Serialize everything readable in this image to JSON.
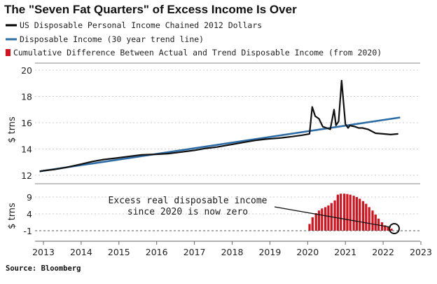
{
  "chart_data": {
    "title": "The \"Seven Fat Quarters\" of Excess Income Is Over",
    "source": "Source: Bloomberg",
    "legend": [
      {
        "label": "US Disposable Personal Income Chained 2012 Dollars",
        "color": "#000000"
      },
      {
        "label": "Disposable Income (30 year trend line)",
        "color": "#2e6ca6"
      },
      {
        "label": "Cumulative Difference Between Actual and Trend Disposable Income (from 2020)",
        "color": "#d8111c"
      }
    ],
    "x_ticks": [
      "2013",
      "2014",
      "2015",
      "2016",
      "2017",
      "2018",
      "2019",
      "2020",
      "2021",
      "2022",
      "2023"
    ],
    "panels": [
      {
        "type": "line",
        "ylabel": "$ trns",
        "ylim": [
          11.8,
          20.3
        ],
        "y_ticks": [
          12,
          14,
          16,
          18,
          20
        ],
        "grid": true,
        "series": [
          {
            "name": "US Disposable Personal Income Chained 2012 Dollars",
            "x": [
              2012.9,
              2013.0,
              2013.3,
              2013.6,
              2014.0,
              2014.3,
              2014.6,
              2014.9,
              2015.3,
              2015.6,
              2016.0,
              2016.3,
              2016.6,
              2017.0,
              2017.3,
              2017.6,
              2018.0,
              2018.3,
              2018.6,
              2018.9,
              2019.3,
              2019.6,
              2019.85,
              2019.95,
              2020.05,
              2020.12,
              2020.2,
              2020.3,
              2020.4,
              2020.5,
              2020.6,
              2020.7,
              2020.75,
              2020.82,
              2020.9,
              2021.0,
              2021.07,
              2021.12,
              2021.17,
              2021.25,
              2021.35,
              2021.45,
              2021.6,
              2021.8,
              2022.0,
              2022.2,
              2022.4
            ],
            "values": [
              12.3,
              12.35,
              12.45,
              12.6,
              12.85,
              13.05,
              13.2,
              13.3,
              13.45,
              13.55,
              13.6,
              13.65,
              13.75,
              13.9,
              14.05,
              14.15,
              14.35,
              14.5,
              14.65,
              14.75,
              14.85,
              14.95,
              15.05,
              15.1,
              15.15,
              17.2,
              16.5,
              16.3,
              15.7,
              15.6,
              15.5,
              17.0,
              15.8,
              16.1,
              19.2,
              15.9,
              15.6,
              15.8,
              15.75,
              15.7,
              15.6,
              15.6,
              15.5,
              15.2,
              15.15,
              15.1,
              15.15
            ]
          },
          {
            "name": "Disposable Income (30 year trend line)",
            "x": [
              2012.9,
              2022.45
            ],
            "values": [
              12.3,
              16.4
            ]
          }
        ]
      },
      {
        "type": "bar",
        "ylabel": "$ trns",
        "ylim": [
          -2.5,
          12
        ],
        "y_ticks": [
          -1,
          4,
          9
        ],
        "baseline": -1,
        "series": [
          {
            "name": "Cumulative Difference Between Actual and Trend Disposable Income (from 2020)",
            "x": [
              2020.05,
              2020.13,
              2020.22,
              2020.3,
              2020.38,
              2020.47,
              2020.55,
              2020.63,
              2020.72,
              2020.8,
              2020.88,
              2020.97,
              2021.05,
              2021.13,
              2021.22,
              2021.3,
              2021.38,
              2021.47,
              2021.55,
              2021.63,
              2021.72,
              2021.8,
              2021.88,
              2021.97,
              2022.05,
              2022.13,
              2022.22
            ],
            "values": [
              1.0,
              3.0,
              4.2,
              5.0,
              5.6,
              6.0,
              6.5,
              7.2,
              8.0,
              9.7,
              10.0,
              10.0,
              9.9,
              9.7,
              9.4,
              9.0,
              8.5,
              7.8,
              7.0,
              6.0,
              5.0,
              3.8,
              2.6,
              1.5,
              0.6,
              0.1,
              -0.4
            ]
          }
        ]
      }
    ],
    "annotation": {
      "line1": "Excess real disposable income",
      "line2": "since 2020 is now zero"
    }
  }
}
